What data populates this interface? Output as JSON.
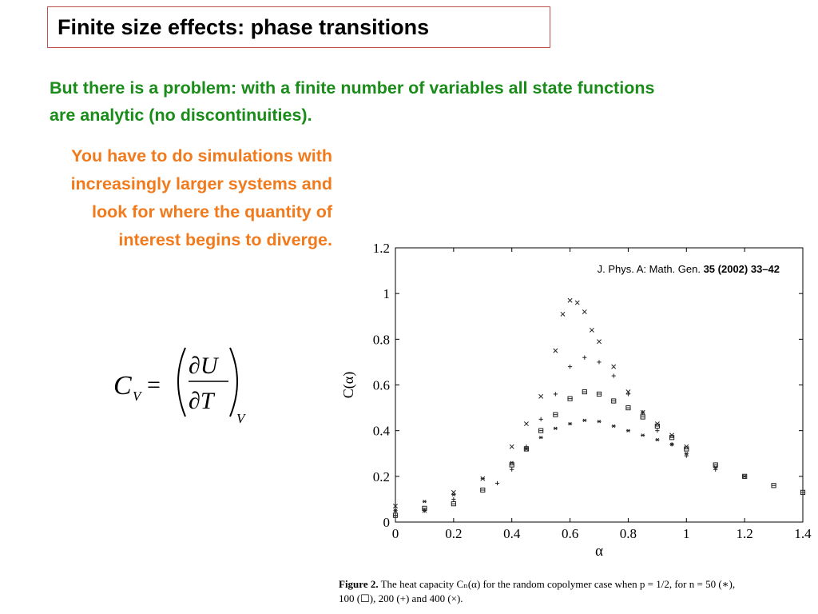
{
  "slide": {
    "title": "Finite size effects: phase transitions",
    "green_line1": "But there is a problem: with a finite number of variables all state functions",
    "green_line2": "are analytic (no discontinuities).",
    "orange_lines": [
      "You have to do simulations with",
      "increasingly larger systems and",
      "look for where the quantity of",
      "interest begins to diverge."
    ],
    "colors": {
      "title_border": "#c0504d",
      "green": "#1a8c1a",
      "orange": "#f07a1c"
    }
  },
  "equation": {
    "lhs": "C",
    "lhs_sub": "V",
    "eq": "=",
    "num": "∂U",
    "den": "∂T",
    "rhs_sub": "V"
  },
  "chart_data": {
    "type": "scatter",
    "xlabel": "α",
    "ylabel": "C(α)",
    "xlim": [
      0,
      1.4
    ],
    "ylim": [
      0,
      1.2
    ],
    "xticks": [
      "0",
      "0.2",
      "0.4",
      "0.6",
      "0.8",
      "1",
      "1.2",
      "1.4"
    ],
    "yticks": [
      "0",
      "0.2",
      "0.4",
      "0.6",
      "0.8",
      "1",
      "1.2"
    ],
    "annotation": {
      "text": "J. Phys. A: Math. Gen. ",
      "bold": "35 (2002) 33–42"
    },
    "grid": false,
    "series": [
      {
        "name": "50",
        "marker": "*",
        "x": [
          0,
          0.1,
          0.2,
          0.3,
          0.4,
          0.45,
          0.5,
          0.55,
          0.6,
          0.65,
          0.7,
          0.75,
          0.8,
          0.85,
          0.9,
          0.95,
          1.0,
          1.1,
          1.2
        ],
        "y": [
          0.05,
          0.09,
          0.12,
          0.19,
          0.26,
          0.32,
          0.37,
          0.41,
          0.43,
          0.445,
          0.44,
          0.42,
          0.4,
          0.38,
          0.36,
          0.34,
          0.3,
          0.24,
          0.2
        ]
      },
      {
        "name": "100",
        "marker": "square",
        "x": [
          0,
          0.1,
          0.2,
          0.3,
          0.4,
          0.45,
          0.5,
          0.55,
          0.6,
          0.65,
          0.7,
          0.75,
          0.8,
          0.85,
          0.9,
          0.95,
          1.0,
          1.1,
          1.2,
          1.3,
          1.4
        ],
        "y": [
          0.03,
          0.06,
          0.08,
          0.14,
          0.25,
          0.32,
          0.4,
          0.47,
          0.54,
          0.57,
          0.56,
          0.53,
          0.5,
          0.46,
          0.42,
          0.37,
          0.32,
          0.25,
          0.2,
          0.16,
          0.13
        ]
      },
      {
        "name": "200",
        "marker": "+",
        "x": [
          0,
          0.1,
          0.2,
          0.35,
          0.4,
          0.45,
          0.5,
          0.55,
          0.6,
          0.65,
          0.7,
          0.75,
          0.8,
          0.85,
          0.9,
          0.95,
          1.0,
          1.1
        ],
        "y": [
          0.02,
          0.05,
          0.1,
          0.17,
          0.23,
          0.33,
          0.45,
          0.56,
          0.68,
          0.72,
          0.7,
          0.64,
          0.56,
          0.48,
          0.4,
          0.34,
          0.29,
          0.23
        ]
      },
      {
        "name": "400",
        "marker": "x",
        "x": [
          0,
          0.1,
          0.2,
          0.3,
          0.4,
          0.45,
          0.5,
          0.55,
          0.575,
          0.6,
          0.625,
          0.65,
          0.675,
          0.7,
          0.75,
          0.8,
          0.85,
          0.9,
          0.95,
          1.0
        ],
        "y": [
          0.07,
          0.05,
          0.13,
          0.19,
          0.33,
          0.43,
          0.55,
          0.75,
          0.91,
          0.97,
          0.96,
          0.92,
          0.84,
          0.79,
          0.68,
          0.57,
          0.48,
          0.43,
          0.38,
          0.33
        ]
      }
    ]
  },
  "caption": {
    "label": "Figure 2.",
    "line1": " The heat capacity Cₙ(α) for the random copolymer case when p = 1/2, for n = 50 (∗),",
    "line2": "100 (☐), 200 (+) and 400 (×)."
  }
}
